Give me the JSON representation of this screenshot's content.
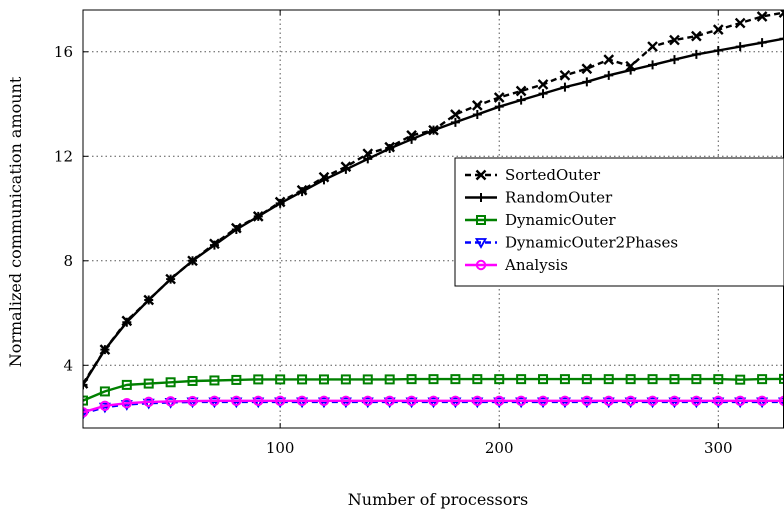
{
  "chart_data": {
    "type": "line",
    "xlabel": "Number of processors",
    "ylabel": "Normalized communication amount",
    "xlim": [
      10,
      330
    ],
    "ylim": [
      1.6,
      17.6
    ],
    "xticks": [
      100,
      200,
      300
    ],
    "yticks": [
      4,
      8,
      12,
      16
    ],
    "grid": true,
    "legend_position": "center-right",
    "x": [
      10,
      20,
      30,
      40,
      50,
      60,
      70,
      80,
      90,
      100,
      110,
      120,
      130,
      140,
      150,
      160,
      170,
      180,
      190,
      200,
      210,
      220,
      230,
      240,
      250,
      260,
      270,
      280,
      290,
      300,
      310,
      320,
      330
    ],
    "series": [
      {
        "name": "SortedOuter",
        "color": "#000000",
        "marker": "x",
        "dash": "6 4",
        "values": [
          3.3,
          4.6,
          5.7,
          6.5,
          7.3,
          8.0,
          8.65,
          9.25,
          9.7,
          10.25,
          10.7,
          11.2,
          11.6,
          12.1,
          12.35,
          12.8,
          13.0,
          13.6,
          13.95,
          14.25,
          14.5,
          14.75,
          15.1,
          15.35,
          15.7,
          15.45,
          16.2,
          16.45,
          16.6,
          16.85,
          17.1,
          17.35,
          17.5
        ]
      },
      {
        "name": "RandomOuter",
        "color": "#000000",
        "marker": "plus",
        "dash": "",
        "values": [
          3.25,
          4.6,
          5.65,
          6.5,
          7.3,
          8.0,
          8.6,
          9.2,
          9.7,
          10.2,
          10.65,
          11.1,
          11.5,
          11.9,
          12.3,
          12.65,
          13.0,
          13.3,
          13.6,
          13.9,
          14.15,
          14.4,
          14.65,
          14.85,
          15.1,
          15.3,
          15.5,
          15.7,
          15.9,
          16.05,
          16.2,
          16.35,
          16.5
        ]
      },
      {
        "name": "DynamicOuter",
        "color": "#008000",
        "marker": "square",
        "dash": "",
        "values": [
          2.65,
          3.0,
          3.25,
          3.3,
          3.35,
          3.4,
          3.42,
          3.44,
          3.46,
          3.46,
          3.46,
          3.46,
          3.46,
          3.46,
          3.46,
          3.47,
          3.47,
          3.47,
          3.47,
          3.47,
          3.47,
          3.47,
          3.47,
          3.47,
          3.47,
          3.47,
          3.47,
          3.47,
          3.47,
          3.47,
          3.45,
          3.47,
          3.48
        ]
      },
      {
        "name": "DynamicOuter2Phases",
        "color": "#0000ff",
        "marker": "triangle-down",
        "dash": "6 4",
        "values": [
          2.15,
          2.4,
          2.5,
          2.55,
          2.58,
          2.6,
          2.6,
          2.6,
          2.6,
          2.6,
          2.6,
          2.6,
          2.6,
          2.6,
          2.6,
          2.6,
          2.6,
          2.6,
          2.6,
          2.6,
          2.6,
          2.6,
          2.6,
          2.6,
          2.6,
          2.6,
          2.6,
          2.6,
          2.6,
          2.6,
          2.6,
          2.6,
          2.6
        ]
      },
      {
        "name": "Analysis",
        "color": "#ff00ff",
        "marker": "circle",
        "dash": "",
        "values": [
          2.2,
          2.45,
          2.55,
          2.6,
          2.62,
          2.63,
          2.64,
          2.64,
          2.64,
          2.64,
          2.64,
          2.64,
          2.64,
          2.64,
          2.64,
          2.64,
          2.64,
          2.64,
          2.64,
          2.64,
          2.64,
          2.64,
          2.64,
          2.64,
          2.64,
          2.64,
          2.64,
          2.64,
          2.64,
          2.64,
          2.64,
          2.64,
          2.64
        ]
      }
    ],
    "legend_labels": [
      "SortedOuter",
      "RandomOuter",
      "DynamicOuter",
      "DynamicOuter2Phases",
      "Analysis"
    ]
  }
}
